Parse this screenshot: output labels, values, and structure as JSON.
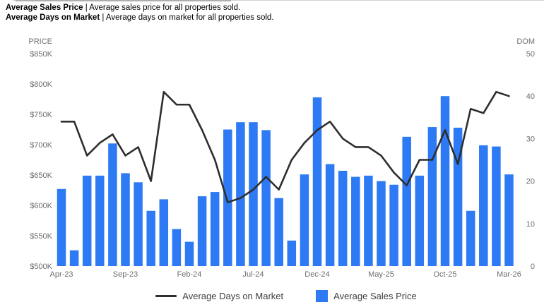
{
  "header": {
    "rows": [
      {
        "title": "Average Sales Price",
        "separator": " | ",
        "description": "Average sales price for all properties sold."
      },
      {
        "title": "Average Days on Market",
        "separator": " | ",
        "description": "Average days on market for all properties sold."
      }
    ]
  },
  "chart_data": {
    "type": "bar",
    "subtype": "combo-bar-line-dual-axis",
    "grid": false,
    "categories": [
      "Apr-23",
      "May-23",
      "Jun-23",
      "Jul-23",
      "Aug-23",
      "Sep-23",
      "Oct-23",
      "Nov-23",
      "Dec-23",
      "Jan-24",
      "Feb-24",
      "Mar-24",
      "Apr-24",
      "May-24",
      "Jun-24",
      "Jul-24",
      "Aug-24",
      "Sep-24",
      "Oct-24",
      "Nov-24",
      "Dec-24",
      "Jan-25",
      "Feb-25",
      "Mar-25",
      "Apr-25",
      "May-25",
      "Jun-25",
      "Jul-25",
      "Aug-25",
      "Sep-25",
      "Oct-25",
      "Nov-25",
      "Dec-25",
      "Jan-26",
      "Feb-26",
      "Mar-26"
    ],
    "series": [
      {
        "name": "Average Sales Price",
        "type": "bar",
        "axis": "left",
        "values": [
          627000,
          526000,
          649000,
          649000,
          702000,
          653000,
          638000,
          591000,
          610000,
          561000,
          540000,
          615000,
          622000,
          725000,
          737000,
          737000,
          724000,
          612000,
          542000,
          651000,
          778000,
          668000,
          657000,
          647000,
          649000,
          640000,
          634000,
          713000,
          649000,
          729000,
          780000,
          728000,
          591000,
          699000,
          697000,
          651000
        ]
      },
      {
        "name": "Average Days on Market",
        "type": "line",
        "axis": "right",
        "values": [
          34,
          34,
          26,
          29,
          31,
          26,
          28,
          20,
          41,
          38,
          38,
          32,
          25,
          15,
          16,
          18,
          21,
          18,
          25,
          29,
          32,
          34,
          30,
          28,
          28,
          26,
          22,
          19,
          25,
          25,
          32,
          24,
          37,
          36,
          41,
          40
        ]
      }
    ],
    "left_axis": {
      "title": "PRICE",
      "min": 500000,
      "max": 850000,
      "tick_labels": [
        "$850K",
        "$800K",
        "$750K",
        "$700K",
        "$650K",
        "$600K",
        "$550K",
        "$500K"
      ]
    },
    "right_axis": {
      "title": "DOM",
      "min": 0,
      "max": 50,
      "tick_labels": [
        "50",
        "40",
        "30",
        "20",
        "10",
        "0"
      ]
    },
    "x_axis": {
      "tick_labels": [
        "Apr-23",
        "Sep-23",
        "Feb-24",
        "Jul-24",
        "Dec-24",
        "May-25",
        "Oct-25",
        "Mar-26"
      ],
      "tick_every_months": 5
    },
    "legend": {
      "position": "bottom",
      "items": [
        {
          "label": "Average Days on Market",
          "swatch": "line"
        },
        {
          "label": "Average Sales Price",
          "swatch": "square"
        }
      ]
    }
  },
  "colors": {
    "bar": "#2d7af4",
    "line": "#2e2e2e",
    "axis_text": "#6e6e6e",
    "header_text": "#000000",
    "legend_text": "#3d3d3d",
    "background": "#ffffff"
  }
}
